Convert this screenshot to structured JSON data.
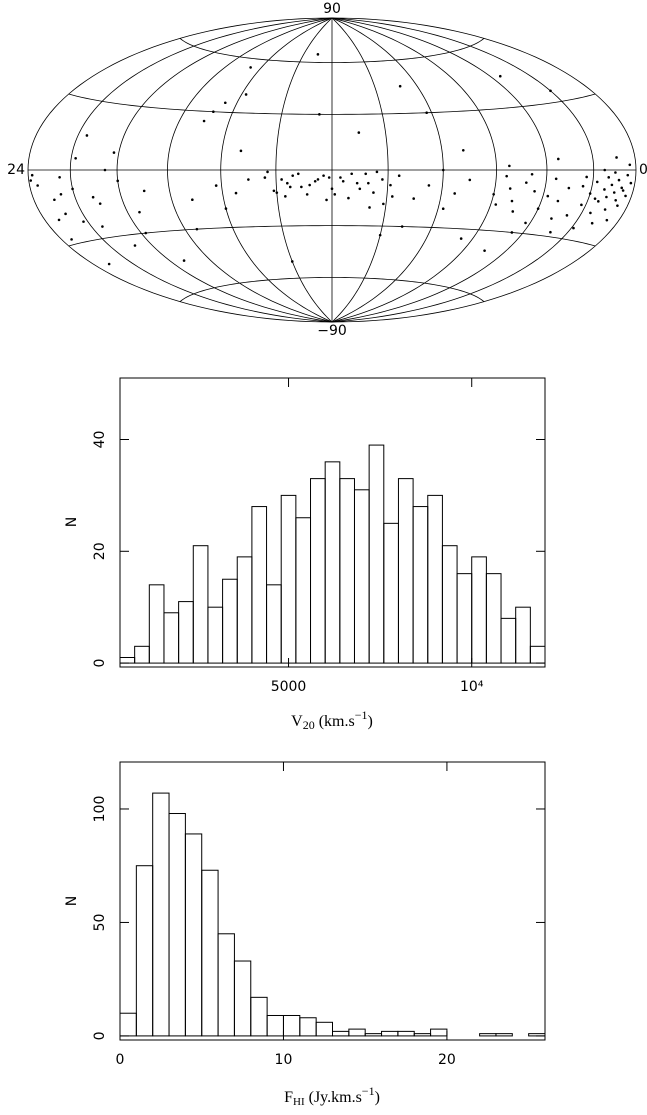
{
  "chart_data": [
    {
      "type": "scatter",
      "projection": "hammer",
      "color": "#000000",
      "xlim": [
        24,
        0
      ],
      "ylim": [
        -90,
        90
      ],
      "xticks": [
        24,
        0
      ],
      "yticks": [
        90,
        {
          "value": -90,
          "label": "−90"
        }
      ],
      "xgrid": [
        2,
        4,
        6,
        8,
        10,
        12,
        14,
        16,
        18,
        20,
        22
      ],
      "ygrid": [
        -60,
        -30,
        0,
        30,
        60
      ],
      "x": [
        0.2,
        0.3,
        0.4,
        0.5,
        0.6,
        0.7,
        0.8,
        0.9,
        1.0,
        1.1,
        1.2,
        1.3,
        1.4,
        1.5,
        1.6,
        1.8,
        2.0,
        2.2,
        2.4,
        0.3,
        0.6,
        0.9,
        1.2,
        1.5,
        1.9,
        2.3,
        0.5,
        1.0,
        1.7,
        2.6,
        3.0,
        3.3,
        3.6,
        4.0,
        4.4,
        4.8,
        5.2,
        5.6,
        3.2,
        3.8,
        4.2,
        4.6,
        5.0,
        5.4,
        5.8,
        2.8,
        3.5,
        4.5,
        5.5,
        6.0,
        2.0,
        3.5,
        5.0,
        6.5,
        7.0,
        7.5,
        8.0,
        8.5,
        9.0,
        7.2,
        8.2,
        9.2,
        7.8,
        8.8,
        9.6,
        9.9,
        10.2,
        10.5,
        10.8,
        11.1,
        11.4,
        11.7,
        12.0,
        12.3,
        12.6,
        12.9,
        13.2,
        13.5,
        13.8,
        14.1,
        14.4,
        9.8,
        10.4,
        11.0,
        11.6,
        12.2,
        12.8,
        13.4,
        14.0,
        10.1,
        10.7,
        11.3,
        11.9,
        12.5,
        13.1,
        13.7,
        14.3,
        10.6,
        12.1,
        13.6,
        11.0,
        12.5,
        13.0,
        10.0,
        14.0,
        15.0,
        15.5,
        16.0,
        16.5,
        17.0,
        17.5,
        15.8,
        16.8,
        16.2,
        17.2,
        15.3,
        16.6,
        19.0,
        19.5,
        20.0,
        20.5,
        21.0,
        21.5,
        22.0,
        22.5,
        23.0,
        23.3,
        23.6,
        23.8,
        19.8,
        20.8,
        21.8,
        22.8,
        23.5,
        20.2,
        21.2,
        22.2,
        23.2,
        19.3,
        21.6,
        22.6,
        23.9
      ],
      "y": [
        -5,
        -10,
        -2,
        -14,
        -7,
        -12,
        -4,
        -9,
        -16,
        -6,
        -11,
        -3,
        -8,
        -13,
        -18,
        -5,
        -10,
        -15,
        -7,
        2,
        -20,
        5,
        -22,
        0,
        -25,
        -3,
        -8,
        -1,
        -12,
        -20,
        -8,
        -14,
        -4,
        -18,
        -10,
        -6,
        -15,
        -3,
        -22,
        -12,
        -25,
        -2,
        -20,
        -9,
        -17,
        -28,
        5,
        -30,
        2,
        -12,
        35,
        45,
        -40,
        -35,
        -5,
        -12,
        0,
        -8,
        -15,
        10,
        30,
        -30,
        -20,
        45,
        -3,
        -8,
        -5,
        -12,
        -2,
        -7,
        -15,
        -4,
        -10,
        -3,
        -6,
        -13,
        -2,
        -9,
        -5,
        -11,
        -4,
        -14,
        -1,
        -10,
        -6,
        -16,
        -8,
        -3,
        -12,
        -18,
        -7,
        -2,
        -13,
        -5,
        -9,
        -14,
        -1,
        -20,
        -4,
        -7,
        20,
        30,
        65,
        -35,
        -50,
        -5,
        -12,
        -20,
        35,
        25,
        -30,
        40,
        30,
        -8,
        -15,
        10,
        55,
        -10,
        -20,
        -5,
        0,
        -15,
        -25,
        -8,
        -3,
        -12,
        -20,
        -6,
        -2,
        -30,
        -35,
        5,
        -18,
        -28,
        8,
        -12,
        -22,
        -40,
        -45,
        15,
        -10,
        -4
      ]
    },
    {
      "type": "histogram",
      "color": "#000000",
      "ylabel": "N",
      "xlabel": [
        "V",
        "20",
        " (km.s",
        "−1",
        ")"
      ],
      "bins": [
        400,
        800,
        1200,
        1600,
        2000,
        2400,
        2800,
        3200,
        3600,
        4000,
        4400,
        4800,
        5200,
        5600,
        6000,
        6400,
        6800,
        7200,
        7600,
        8000,
        8400,
        8800,
        9200,
        9600,
        10000,
        10400,
        10800,
        11200,
        11600,
        12000
      ],
      "values": [
        1,
        3,
        14,
        9,
        11,
        21,
        10,
        15,
        19,
        28,
        14,
        30,
        26,
        33,
        36,
        33,
        31,
        39,
        25,
        33,
        28,
        30,
        21,
        16,
        19,
        16,
        8,
        10,
        3
      ],
      "xlim": [
        400,
        12000
      ],
      "ylim": [
        -0.7,
        51
      ],
      "xticks": [
        5000,
        {
          "value": 10000,
          "label": "10⁴"
        }
      ],
      "yticks": [
        0,
        20,
        40
      ]
    },
    {
      "type": "histogram",
      "color": "#000000",
      "ylabel": "N",
      "xlabel": [
        "F",
        "HI",
        " (Jy.km.s",
        "−1",
        ")"
      ],
      "bins": [
        0,
        1,
        2,
        3,
        4,
        5,
        6,
        7,
        8,
        9,
        10,
        11,
        12,
        13,
        14,
        15,
        16,
        17,
        18,
        19,
        20,
        21,
        22,
        23,
        24,
        25,
        26
      ],
      "values": [
        10,
        75,
        107,
        98,
        89,
        73,
        45,
        33,
        17,
        9,
        9,
        8,
        6,
        2,
        3,
        1,
        2,
        2,
        1,
        3,
        0,
        0,
        1,
        1,
        0,
        1
      ],
      "xlim": [
        0,
        26
      ],
      "ylim": [
        -1.8,
        120.7
      ],
      "xticks": [
        0,
        10,
        20
      ],
      "yticks": [
        0,
        50,
        100
      ]
    }
  ]
}
